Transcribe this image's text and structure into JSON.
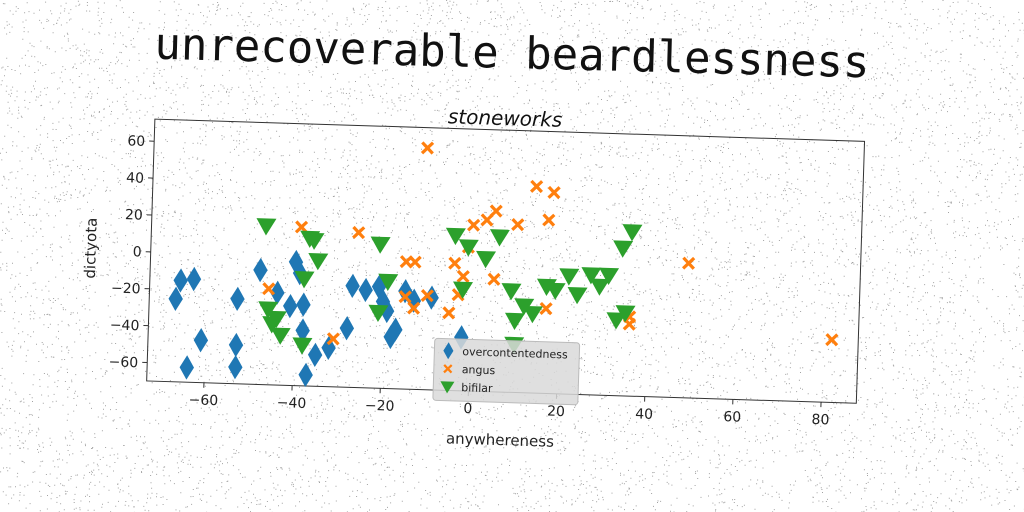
{
  "page": {
    "title": "unrecoverable beardlessness"
  },
  "colors": {
    "overcontentedness": "#1f77b4",
    "angus": "#ff7f0e",
    "bifilar": "#2ca02c"
  },
  "chart_data": {
    "type": "scatter",
    "title": "stoneworks",
    "xlabel": "anywhereness",
    "ylabel": "dictyota",
    "xlim": [
      -73,
      88
    ],
    "ylim": [
      -70,
      72
    ],
    "xticks": [
      -60,
      -40,
      -20,
      0,
      20,
      40,
      60,
      80
    ],
    "yticks": [
      60,
      40,
      20,
      0,
      -20,
      -40,
      -60
    ],
    "grid": false,
    "legend_position": "lower-center",
    "series": [
      {
        "name": "overcontentedness",
        "marker": "diamond",
        "points": [
          [
            -67,
            -25
          ],
          [
            -66,
            -15
          ],
          [
            -63,
            -14
          ],
          [
            -64,
            -62
          ],
          [
            -61,
            -47
          ],
          [
            -53,
            -24
          ],
          [
            -53,
            -49
          ],
          [
            -53,
            -61
          ],
          [
            -48,
            -8
          ],
          [
            -44,
            -20
          ],
          [
            -41,
            -27
          ],
          [
            -40,
            -3
          ],
          [
            -39,
            -9
          ],
          [
            -38,
            -26
          ],
          [
            -38,
            -40
          ],
          [
            -37,
            -64
          ],
          [
            -35,
            -53
          ],
          [
            -32,
            -49
          ],
          [
            -28,
            -38
          ],
          [
            -27,
            -15
          ],
          [
            -24,
            -17
          ],
          [
            -21,
            -15
          ],
          [
            -20,
            -23
          ],
          [
            -19,
            -28
          ],
          [
            -18,
            -42
          ],
          [
            -17,
            -38
          ],
          [
            -15,
            -17
          ],
          [
            -13,
            -22
          ],
          [
            -9,
            -20
          ],
          [
            -2,
            -41
          ]
        ]
      },
      {
        "name": "angus",
        "marker": "x",
        "points": [
          [
            -11,
            61
          ],
          [
            -46,
            -18
          ],
          [
            -39,
            16
          ],
          [
            -26,
            14
          ],
          [
            -31,
            -44
          ],
          [
            -15,
            -1
          ],
          [
            -13,
            -1
          ],
          [
            -10,
            -19
          ],
          [
            -13,
            -26
          ],
          [
            -15,
            -20
          ],
          [
            -4,
            -1
          ],
          [
            -2,
            -8
          ],
          [
            -3,
            -18
          ],
          [
            -5,
            -28
          ],
          [
            -1,
            8
          ],
          [
            0,
            20
          ],
          [
            3,
            23
          ],
          [
            5,
            28
          ],
          [
            10,
            21
          ],
          [
            14,
            42
          ],
          [
            18,
            39
          ],
          [
            17,
            24
          ],
          [
            17,
            -24
          ],
          [
            5,
            -9
          ],
          [
            36,
            -27
          ],
          [
            36,
            -31
          ],
          [
            49,
            3
          ],
          [
            82,
            -36
          ]
        ]
      },
      {
        "name": "bifilar",
        "marker": "triangle-down",
        "points": [
          [
            -47,
            16
          ],
          [
            -37,
            10
          ],
          [
            -36,
            9
          ],
          [
            -35,
            -2
          ],
          [
            -38,
            -12
          ],
          [
            -21,
            8
          ],
          [
            -19,
            -12
          ],
          [
            -21,
            -29
          ],
          [
            -45,
            -37
          ],
          [
            -43,
            -43
          ],
          [
            -38,
            -48
          ],
          [
            -4,
            14
          ],
          [
            -1,
            8
          ],
          [
            3,
            2
          ],
          [
            6,
            14
          ],
          [
            -2,
            -15
          ],
          [
            9,
            -15
          ],
          [
            10,
            -31
          ],
          [
            12,
            -23
          ],
          [
            14,
            -27
          ],
          [
            17,
            -12
          ],
          [
            19,
            -14
          ],
          [
            22,
            -6
          ],
          [
            24,
            -16
          ],
          [
            27,
            -5
          ],
          [
            29,
            -11
          ],
          [
            31,
            -5
          ],
          [
            33,
            -29
          ],
          [
            35,
            -25
          ],
          [
            36,
            19
          ],
          [
            34,
            10
          ],
          [
            10,
            -44
          ],
          [
            -46,
            -29
          ],
          [
            -44,
            -34
          ]
        ]
      }
    ]
  }
}
